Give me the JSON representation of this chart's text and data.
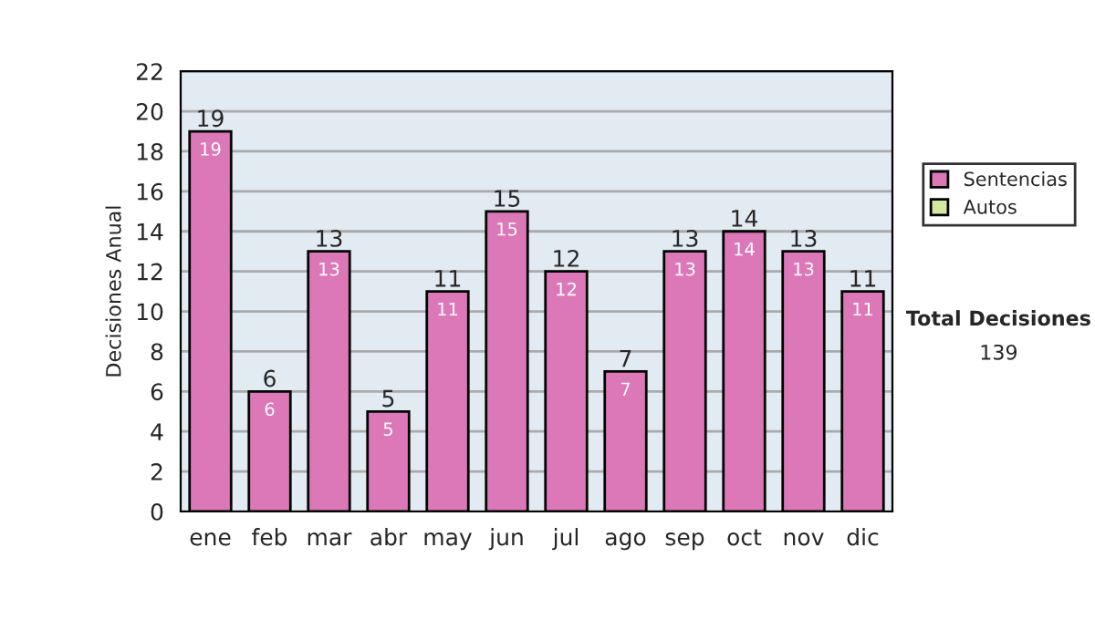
{
  "chart_data": {
    "type": "bar",
    "ylabel": "Decisiones Anual",
    "categories": [
      "ene",
      "feb",
      "mar",
      "abr",
      "may",
      "jun",
      "jul",
      "ago",
      "sep",
      "oct",
      "nov",
      "dic"
    ],
    "stacked": true,
    "series": [
      {
        "name": "Sentencias",
        "color": "#dc78b8",
        "values": [
          19,
          6,
          13,
          5,
          11,
          15,
          12,
          7,
          13,
          14,
          13,
          11
        ],
        "value_labels": [
          "19",
          "6",
          "13",
          "5",
          "11",
          "15",
          "12",
          "7",
          "13",
          "14",
          "13",
          "11"
        ]
      },
      {
        "name": "Autos",
        "color": "#d4e8a0",
        "values": [
          0,
          0,
          0,
          0,
          0,
          0,
          0,
          0,
          0,
          0,
          0,
          0
        ]
      }
    ],
    "totals": [
      "19",
      "6",
      "13",
      "5",
      "11",
      "15",
      "12",
      "7",
      "13",
      "14",
      "13",
      "11"
    ],
    "ylim": [
      0,
      22
    ],
    "yticks": [
      0,
      2,
      4,
      6,
      8,
      10,
      12,
      14,
      16,
      18,
      20,
      22
    ],
    "grid": "y",
    "legend": "right",
    "annotations": [
      "Total Decisiones",
      "139"
    ]
  }
}
